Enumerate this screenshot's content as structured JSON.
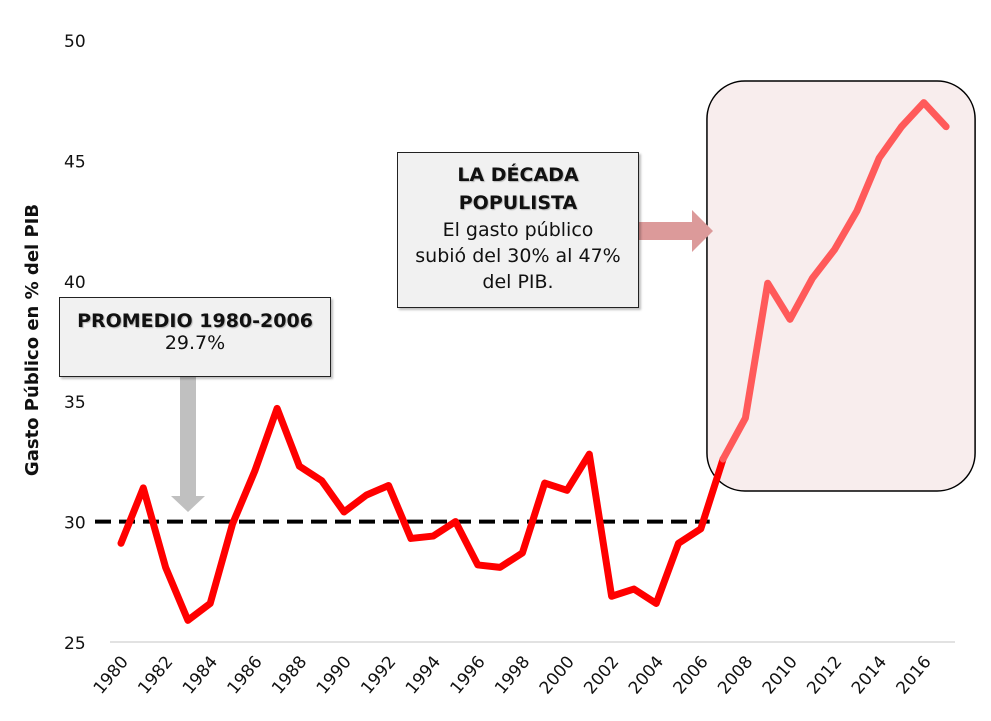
{
  "chart_data": {
    "type": "line",
    "title": "",
    "xlabel": "",
    "ylabel": "Gasto Público en % del PIB",
    "ylim": [
      25,
      50
    ],
    "yticks": [
      25,
      30,
      35,
      40,
      45,
      50
    ],
    "x": [
      1980,
      1981,
      1982,
      1983,
      1984,
      1985,
      1986,
      1987,
      1988,
      1989,
      1990,
      1991,
      1992,
      1993,
      1994,
      1995,
      1996,
      1997,
      1998,
      1999,
      2000,
      2001,
      2002,
      2003,
      2004,
      2005,
      2006,
      2007,
      2008,
      2009,
      2010,
      2011,
      2012,
      2013,
      2014,
      2015,
      2016,
      2017
    ],
    "xtick_labels": [
      "1980",
      "1982",
      "1984",
      "1986",
      "1988",
      "1990",
      "1992",
      "1994",
      "1996",
      "1998",
      "2000",
      "2002",
      "2004",
      "2006",
      "2008",
      "2010",
      "2012",
      "2014",
      "2016"
    ],
    "series": [
      {
        "name": "Gasto Público",
        "color": "#ff0000",
        "highlight_color": "#ff5a5a",
        "values": [
          29.1,
          31.4,
          28.1,
          25.9,
          26.6,
          29.9,
          32.1,
          34.7,
          32.3,
          31.7,
          30.4,
          31.1,
          31.5,
          29.3,
          29.4,
          30.0,
          28.2,
          28.1,
          28.7,
          31.6,
          31.3,
          32.8,
          26.9,
          27.2,
          26.6,
          29.1,
          29.7,
          32.6,
          34.3,
          39.9,
          38.4,
          40.1,
          41.3,
          42.9,
          45.1,
          46.4,
          47.4,
          46.4
        ]
      }
    ],
    "reference_line": {
      "value": 30,
      "from": 1980,
      "to": 2006.4,
      "style": "dashed",
      "color": "#000000"
    },
    "highlight_region": {
      "from": 2006.5,
      "to": 2018.3,
      "fill": "#f8eded",
      "border": "#000000"
    },
    "grid": false,
    "annotations": [
      {
        "id": "average",
        "title": "PROMEDIO 1980-2006",
        "body": "29.7%",
        "arrow": "down",
        "arrow_color": "#c0c0c0"
      },
      {
        "id": "decade",
        "title_lines": [
          "LA DÉCADA",
          "POPULISTA"
        ],
        "body_lines": [
          "El gasto público",
          "subió del 30% al 47%",
          "del PIB."
        ],
        "arrow": "right",
        "arrow_color": "#dc9a9a"
      }
    ]
  }
}
